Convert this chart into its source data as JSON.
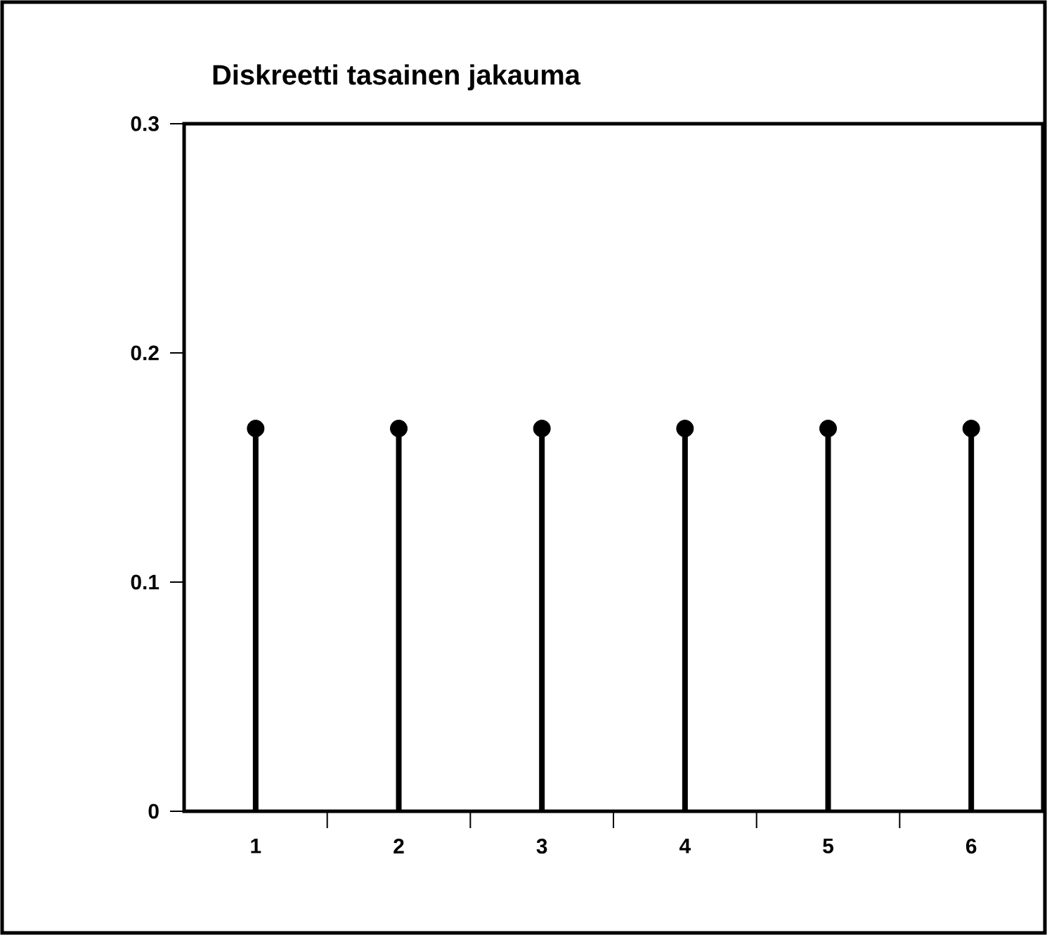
{
  "chart_data": {
    "type": "lollipop",
    "title": "Diskreetti tasainen jakauma",
    "categories": [
      "1",
      "2",
      "3",
      "4",
      "5",
      "6"
    ],
    "values": [
      0.167,
      0.167,
      0.167,
      0.167,
      0.167,
      0.167
    ],
    "color": "#000000",
    "marker": "circle",
    "ylim": [
      0,
      0.3
    ],
    "yticks": [
      0,
      0.1,
      0.2,
      0.3
    ],
    "grid": false
  }
}
